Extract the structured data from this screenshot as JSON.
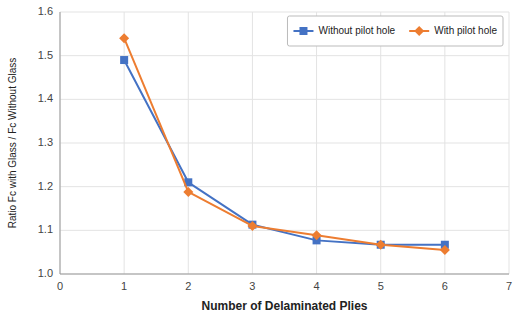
{
  "chart_data": {
    "type": "line",
    "x_label": "Number of Delaminated Plies",
    "y_label": "Ratio Fc with Glass / Fc Without Glass",
    "x": [
      1,
      2,
      3,
      4,
      5,
      6
    ],
    "series": [
      {
        "name": "Without pilot hole",
        "color": "#4472C4",
        "marker": "square",
        "values": [
          1.49,
          1.21,
          1.113,
          1.077,
          1.067,
          1.067
        ]
      },
      {
        "name": "With pilot hole",
        "color": "#ED7D31",
        "marker": "diamond",
        "values": [
          1.54,
          1.188,
          1.11,
          1.089,
          1.067,
          1.055
        ]
      }
    ],
    "xlim": [
      0,
      7
    ],
    "xticks": [
      0,
      1,
      2,
      3,
      4,
      5,
      6,
      7
    ],
    "ylim": [
      1.0,
      1.6
    ],
    "yticks": [
      {
        "value": 1.0,
        "label": "1.0"
      },
      1.1,
      1.2,
      1.3,
      1.4,
      1.5,
      1.6
    ],
    "grid": true,
    "legend": "upper right"
  }
}
